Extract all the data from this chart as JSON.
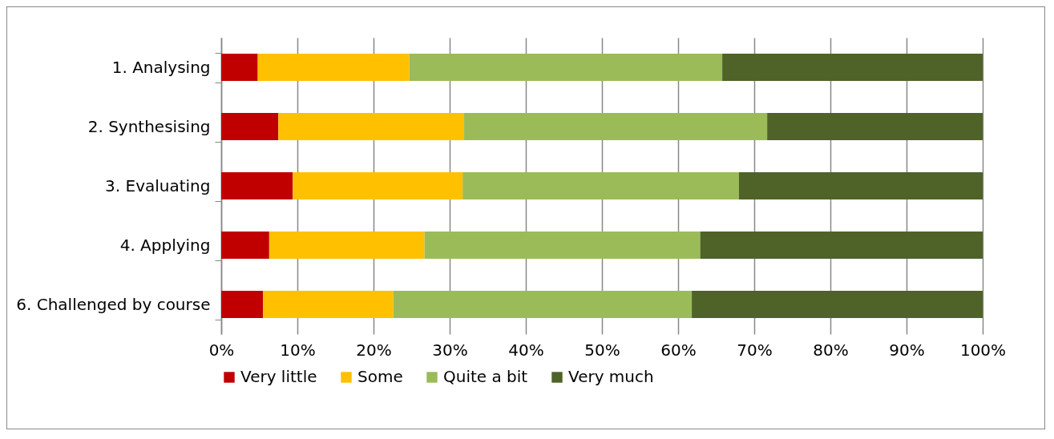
{
  "chart_data": {
    "type": "bar",
    "orientation": "horizontal",
    "stacked": true,
    "categories": [
      "1. Analysing",
      "2. Synthesising",
      "3. Evaluating",
      "4. Applying",
      "6. Challenged by course"
    ],
    "series": [
      {
        "name": "Very little",
        "color": "#c00000",
        "values": [
          4.8,
          7.5,
          9.4,
          6.3,
          5.5
        ]
      },
      {
        "name": "Some",
        "color": "#ffc000",
        "values": [
          19.9,
          24.4,
          22.3,
          20.4,
          17.1
        ]
      },
      {
        "name": "Quite a bit",
        "color": "#9bbb59",
        "values": [
          41.1,
          39.8,
          36.3,
          36.2,
          39.2
        ]
      },
      {
        "name": "Very much",
        "color": "#4f6228",
        "values": [
          34.2,
          28.3,
          32.0,
          37.1,
          38.2
        ]
      }
    ],
    "xlim": [
      0,
      100
    ],
    "xticks": [
      {
        "value": 0,
        "label": "0%"
      },
      {
        "value": 10,
        "label": "10%"
      },
      {
        "value": 20,
        "label": "20%"
      },
      {
        "value": 30,
        "label": "30%"
      },
      {
        "value": 40,
        "label": "40%"
      },
      {
        "value": 50,
        "label": "50%"
      },
      {
        "value": 60,
        "label": "60%"
      },
      {
        "value": 70,
        "label": "70%"
      },
      {
        "value": 80,
        "label": "80%"
      },
      {
        "value": 90,
        "label": "90%"
      },
      {
        "value": 100,
        "label": "100%"
      }
    ],
    "grid": "x",
    "legend": "bottom"
  }
}
